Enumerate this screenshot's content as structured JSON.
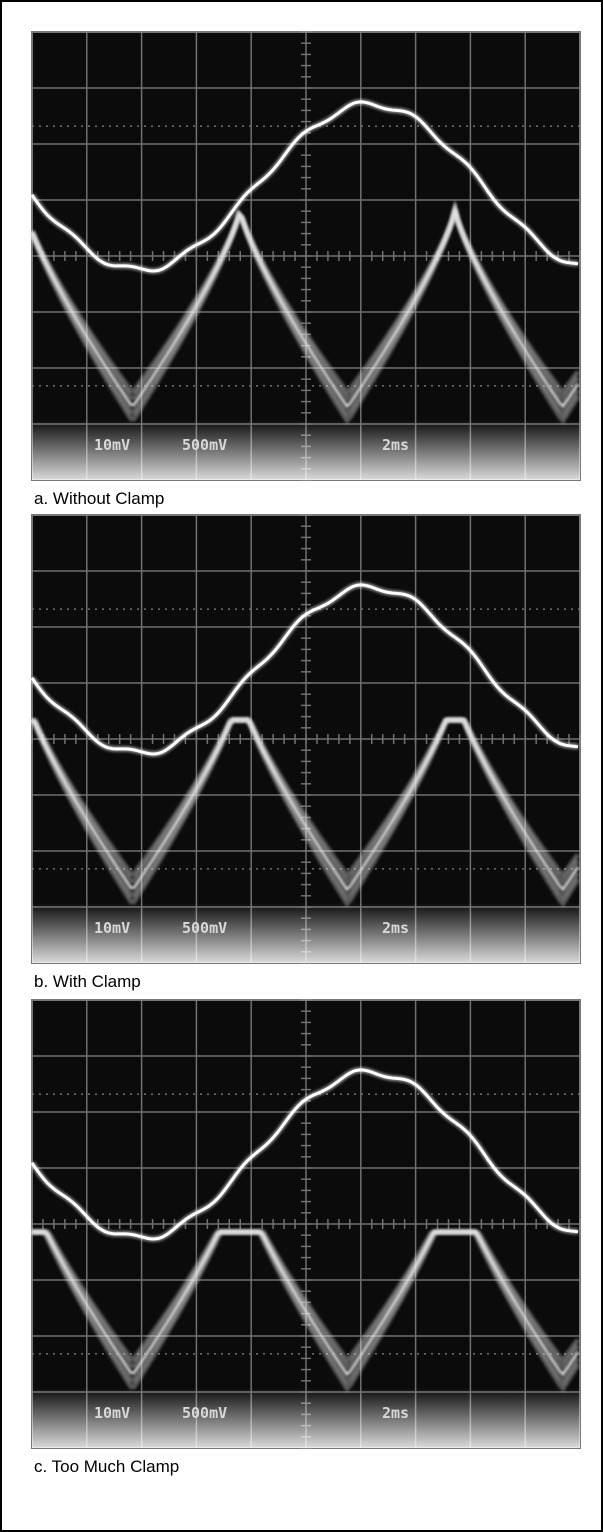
{
  "panels": [
    {
      "caption": "a. Without  Clamp",
      "readouts": [
        "10mV",
        "500mV",
        "2ms"
      ]
    },
    {
      "caption": "b. With Clamp",
      "readouts": [
        "10mV",
        "500mV",
        "2ms"
      ]
    },
    {
      "caption": "c. Too Much Clamp",
      "readouts": [
        "10mV",
        "500mV",
        "2ms"
      ]
    }
  ]
}
